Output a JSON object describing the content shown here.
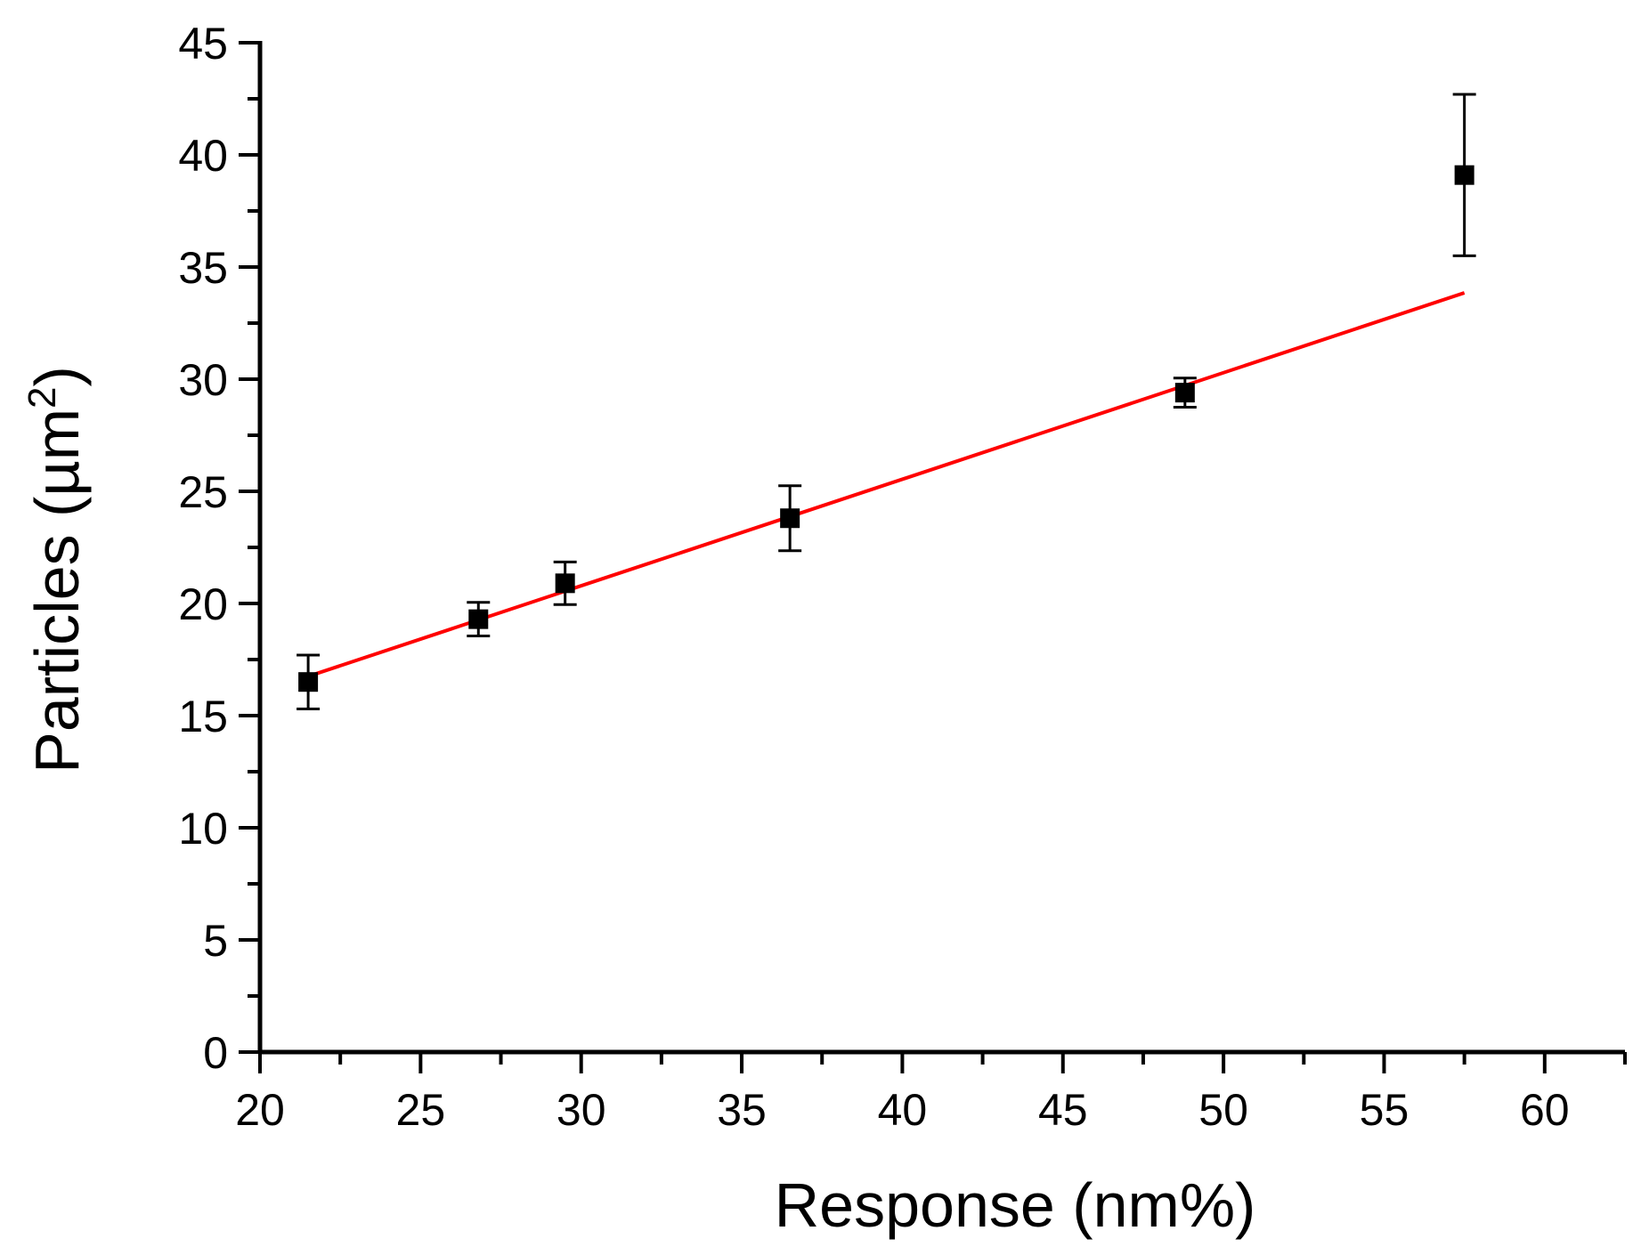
{
  "chart_data": {
    "type": "scatter",
    "title": "",
    "xlabel": "Response (nm%)",
    "ylabel_main": "Particles (µm",
    "ylabel_sup": "2",
    "ylabel_close": ")",
    "xlim": [
      20,
      62.5
    ],
    "ylim": [
      0,
      45
    ],
    "x_ticks": [
      "20",
      "25",
      "30",
      "35",
      "40",
      "45",
      "50",
      "55",
      "60"
    ],
    "y_ticks": [
      "0",
      "5",
      "10",
      "15",
      "20",
      "25",
      "30",
      "35",
      "40",
      "45"
    ],
    "grid": false,
    "legend": "none",
    "series": [
      {
        "type": "scatter",
        "color": "#000000",
        "marker": "square",
        "points": [
          {
            "x": 21.5,
            "y": 16.5,
            "err": 1.2
          },
          {
            "x": 26.8,
            "y": 19.3,
            "err": 0.75
          },
          {
            "x": 29.5,
            "y": 20.9,
            "err": 0.95
          },
          {
            "x": 36.5,
            "y": 23.8,
            "err": 1.45
          },
          {
            "x": 48.8,
            "y": 29.4,
            "err": 0.65
          },
          {
            "x": 57.5,
            "y": 39.1,
            "err": 3.6
          }
        ]
      },
      {
        "type": "line",
        "color": "#ff0000",
        "points": [
          {
            "x": 21.5,
            "y": 16.75
          },
          {
            "x": 57.5,
            "y": 33.85
          }
        ]
      }
    ]
  }
}
